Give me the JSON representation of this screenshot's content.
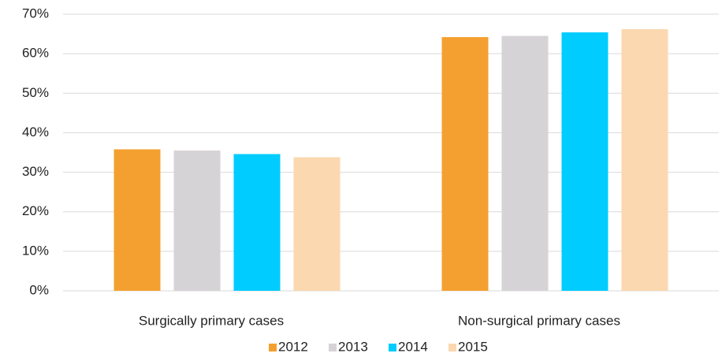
{
  "chart_data": {
    "type": "bar",
    "categories": [
      "Surgically primary cases",
      "Non-surgical primary cases"
    ],
    "series": [
      {
        "name": "2012",
        "color": "#f4a030",
        "values": [
          35.8,
          64.2
        ]
      },
      {
        "name": "2013",
        "color": "#d6d3d6",
        "values": [
          35.5,
          64.5
        ]
      },
      {
        "name": "2014",
        "color": "#00ccff",
        "values": [
          34.6,
          65.4
        ]
      },
      {
        "name": "2015",
        "color": "#fbd8b0",
        "values": [
          33.8,
          66.2
        ]
      }
    ],
    "ylim": [
      0,
      70
    ],
    "yticks": [
      {
        "value": 0,
        "label": "0%"
      },
      {
        "value": 10,
        "label": "10%"
      },
      {
        "value": 20,
        "label": "20%"
      },
      {
        "value": 30,
        "label": "30%"
      },
      {
        "value": 40,
        "label": "40%"
      },
      {
        "value": 50,
        "label": "50%"
      },
      {
        "value": 60,
        "label": "60%"
      },
      {
        "value": 70,
        "label": "70%"
      }
    ],
    "grid": true,
    "legend": "bottom"
  }
}
